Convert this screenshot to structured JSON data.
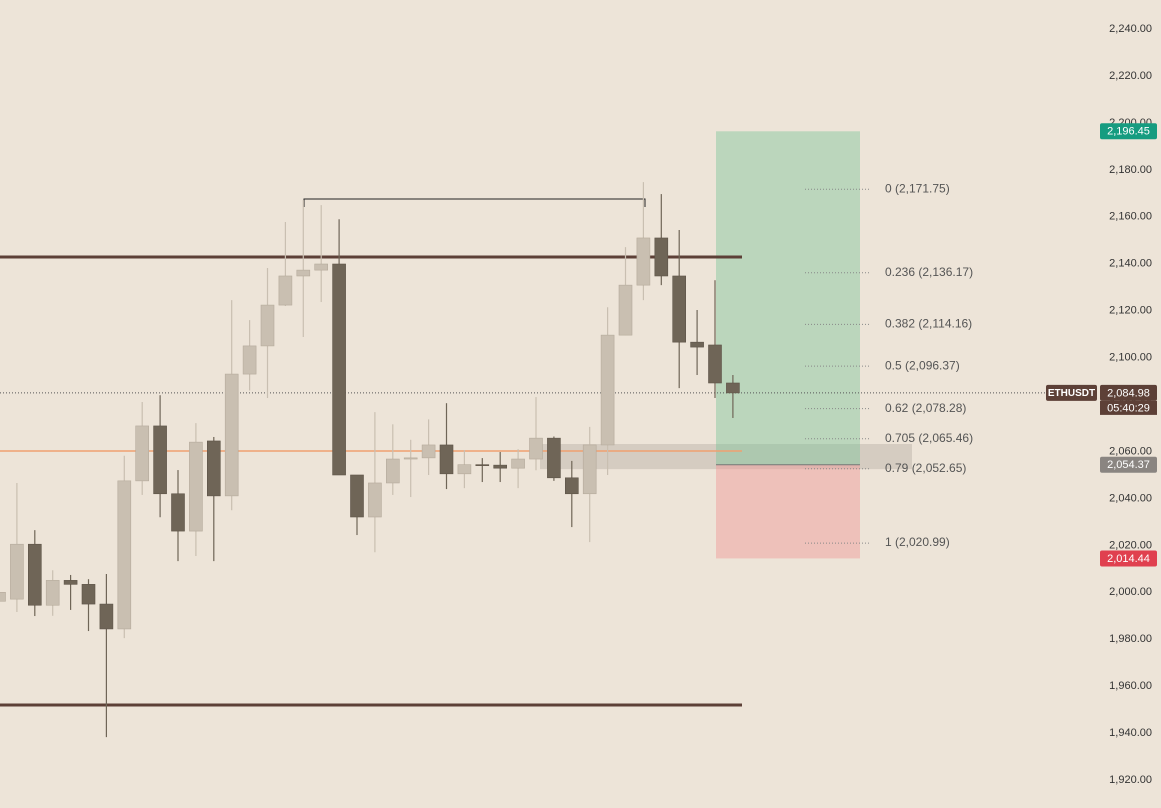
{
  "chart_data": {
    "type": "candlestick",
    "symbol": "ETHUSDT",
    "countdown": "05:40:29",
    "ylim": [
      1908.1,
      2252.4
    ],
    "yticks": [
      {
        "value": 1920,
        "label": "1,920.00"
      },
      {
        "value": 1940,
        "label": "1,940.00"
      },
      {
        "value": 1960,
        "label": "1,960.00"
      },
      {
        "value": 1980,
        "label": "1,980.00"
      },
      {
        "value": 2000,
        "label": "2,000.00"
      },
      {
        "value": 2020,
        "label": "2,020.00"
      },
      {
        "value": 2040,
        "label": "2,040.00"
      },
      {
        "value": 2060,
        "label": "2,060.00"
      },
      {
        "value": 2080,
        "label": "2,080.00"
      },
      {
        "value": 2100,
        "label": "2,100.00"
      },
      {
        "value": 2120,
        "label": "2,120.00"
      },
      {
        "value": 2140,
        "label": "2,140.00"
      },
      {
        "value": 2160,
        "label": "2,160.00"
      },
      {
        "value": 2180,
        "label": "2,180.00"
      },
      {
        "value": 2200,
        "label": "2,200.00"
      },
      {
        "value": 2220,
        "label": "2,220.00"
      },
      {
        "value": 2240,
        "label": "2,240.00"
      }
    ],
    "up_color": "#c9bfb1",
    "down_color": "#6f6557",
    "candles": {
      "open": [
        1996.2,
        1997.1,
        2020.5,
        1994.5,
        2005.1,
        2003.4,
        1995.0,
        1984.4,
        2047.5,
        2070.9,
        2042.0,
        2026.1,
        2064.5,
        2041.1,
        2093.0,
        2105.0,
        2122.4,
        2134.8,
        2137.3,
        2139.9,
        2050.0,
        2032.1,
        2046.6,
        2056.8,
        2057.3,
        2062.8,
        2050.5,
        2054.4,
        2054.2,
        2052.9,
        2056.8,
        2065.7,
        2048.8,
        2042.0,
        2062.8,
        2109.6,
        2130.9,
        2151.0,
        2134.8,
        2106.6,
        2105.4,
        2089.2
      ],
      "high": [
        2000.5,
        2046.6,
        2026.5,
        2009.4,
        2007.4,
        2005.6,
        2007.8,
        2058.2,
        2081.1,
        2084.0,
        2052.1,
        2072.1,
        2066.2,
        2124.5,
        2116.0,
        2138.2,
        2157.8,
        2167.1,
        2165.0,
        2159.0,
        2050.0,
        2076.8,
        2071.6,
        2065.0,
        2073.7,
        2080.6,
        2060.6,
        2057.2,
        2059.8,
        2061.0,
        2083.2,
        2066.4,
        2056.0,
        2070.5,
        2121.5,
        2147.1,
        2174.8,
        2169.7,
        2154.4,
        2120.3,
        2133.0,
        2092.6
      ],
      "low": [
        1995.5,
        1991.6,
        1989.9,
        1990.0,
        1992.5,
        1983.5,
        1938.3,
        1980.5,
        2041.5,
        2032.0,
        2013.3,
        2015.5,
        2013.3,
        2035.0,
        2086.0,
        2082.8,
        2122.0,
        2108.8,
        2123.7,
        2050.0,
        2024.4,
        2017.1,
        2041.5,
        2040.6,
        2050.0,
        2044.0,
        2044.4,
        2047.0,
        2047.0,
        2044.4,
        2052.0,
        2047.5,
        2027.8,
        2021.4,
        2050.0,
        2109.6,
        2124.5,
        2130.9,
        2087.0,
        2092.6,
        2082.8,
        2074.3
      ],
      "close": [
        2000.0,
        2020.5,
        1994.5,
        2005.1,
        2003.4,
        1995.0,
        1984.4,
        2047.5,
        2070.9,
        2042.0,
        2026.1,
        2064.0,
        2041.1,
        2093.0,
        2105.0,
        2122.4,
        2134.8,
        2137.3,
        2139.9,
        2050.0,
        2032.1,
        2046.6,
        2056.8,
        2057.3,
        2062.8,
        2050.5,
        2054.4,
        2054.2,
        2052.9,
        2056.8,
        2065.7,
        2048.8,
        2042.0,
        2062.8,
        2109.6,
        2130.9,
        2151.0,
        2134.8,
        2106.6,
        2104.5,
        2089.2,
        2084.98
      ]
    },
    "hlines": [
      {
        "value": 2142.9,
        "color": "#5d4037"
      },
      {
        "value": 1952.0,
        "color": "#5d4037"
      },
      {
        "value": 2060.2,
        "color": "#f0a070"
      }
    ],
    "high_marker": 2167.6,
    "zone": {
      "top": 2063.2,
      "bottom": 2052.5
    },
    "position": {
      "target": {
        "value": 2196.45,
        "label": "2,196.45"
      },
      "entry": {
        "value": 2054.37,
        "label": "2,054.37"
      },
      "stop": {
        "value": 2014.44,
        "label": "2,014.44"
      }
    },
    "current_price": {
      "value": 2084.98,
      "label": "2,084.98"
    },
    "fib_levels": [
      {
        "value": 2171.75,
        "label": "0 (2,171.75)"
      },
      {
        "value": 2136.17,
        "label": "0.236 (2,136.17)"
      },
      {
        "value": 2114.16,
        "label": "0.382 (2,114.16)"
      },
      {
        "value": 2096.37,
        "label": "0.5 (2,096.37)"
      },
      {
        "value": 2078.28,
        "label": "0.62 (2,078.28)"
      },
      {
        "value": 2065.46,
        "label": "0.705 (2,065.46)"
      },
      {
        "value": 2052.65,
        "label": "0.79 (2,052.65)"
      },
      {
        "value": 2020.99,
        "label": "1 (2,020.99)"
      }
    ]
  }
}
